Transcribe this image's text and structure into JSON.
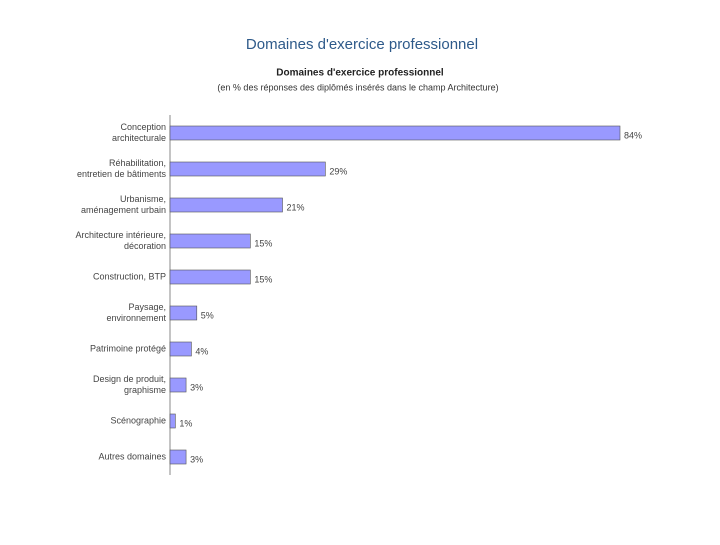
{
  "slide_title": "Domaines d'exercice professionnel",
  "chart_data": {
    "type": "bar",
    "orientation": "horizontal",
    "title": "Domaines d'exercice professionnel",
    "subtitle": "(en % des réponses des diplômés insérés dans le champ Architecture)",
    "categories": [
      [
        "Conception",
        "architecturale"
      ],
      [
        "Réhabilitation,",
        "entretien de bâtiments"
      ],
      [
        "Urbanisme,",
        "aménagement urbain"
      ],
      [
        "Architecture intérieure,",
        "décoration"
      ],
      [
        "Construction, BTP"
      ],
      [
        "Paysage,",
        "environnement"
      ],
      [
        "Patrimoine protégé"
      ],
      [
        "Design de produit,",
        "graphisme"
      ],
      [
        "Scénographie"
      ],
      [
        "Autres domaines"
      ]
    ],
    "values": [
      84,
      29,
      21,
      15,
      15,
      5,
      4,
      3,
      1,
      3
    ],
    "value_labels": [
      "84%",
      "29%",
      "21%",
      "15%",
      "15%",
      "5%",
      "4%",
      "3%",
      "1%",
      "3%"
    ],
    "color": "#9999ff"
  }
}
